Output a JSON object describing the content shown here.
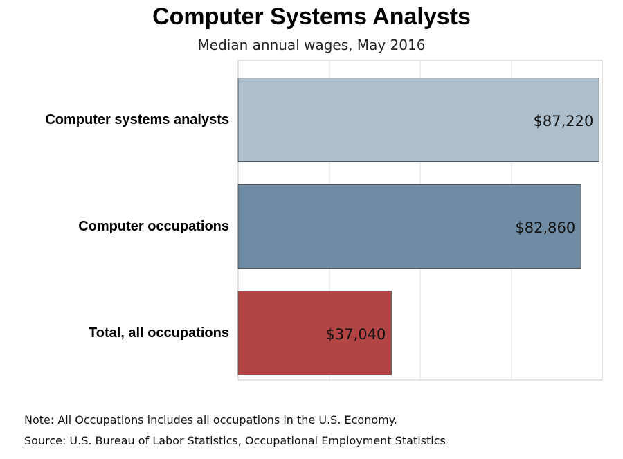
{
  "chart_data": {
    "type": "bar",
    "orientation": "horizontal",
    "title": "Computer Systems Analysts",
    "subtitle": "Median annual wages, May 2016",
    "categories": [
      "Computer systems analysts",
      "Computer occupations",
      "Total, all occupations"
    ],
    "values": [
      87220,
      82860,
      37040
    ],
    "value_labels": [
      "$87,220",
      "$82,860",
      "$37,040"
    ],
    "colors": [
      "#adbfcd",
      "#708ca4",
      "#b24444"
    ],
    "xlim": [
      0,
      88000
    ],
    "vertical_grid": true
  },
  "footer": {
    "note": "Note: All Occupations includes all occupations in the U.S. Economy.",
    "source": "Source: U.S. Bureau of Labor Statistics, Occupational Employment Statistics"
  }
}
